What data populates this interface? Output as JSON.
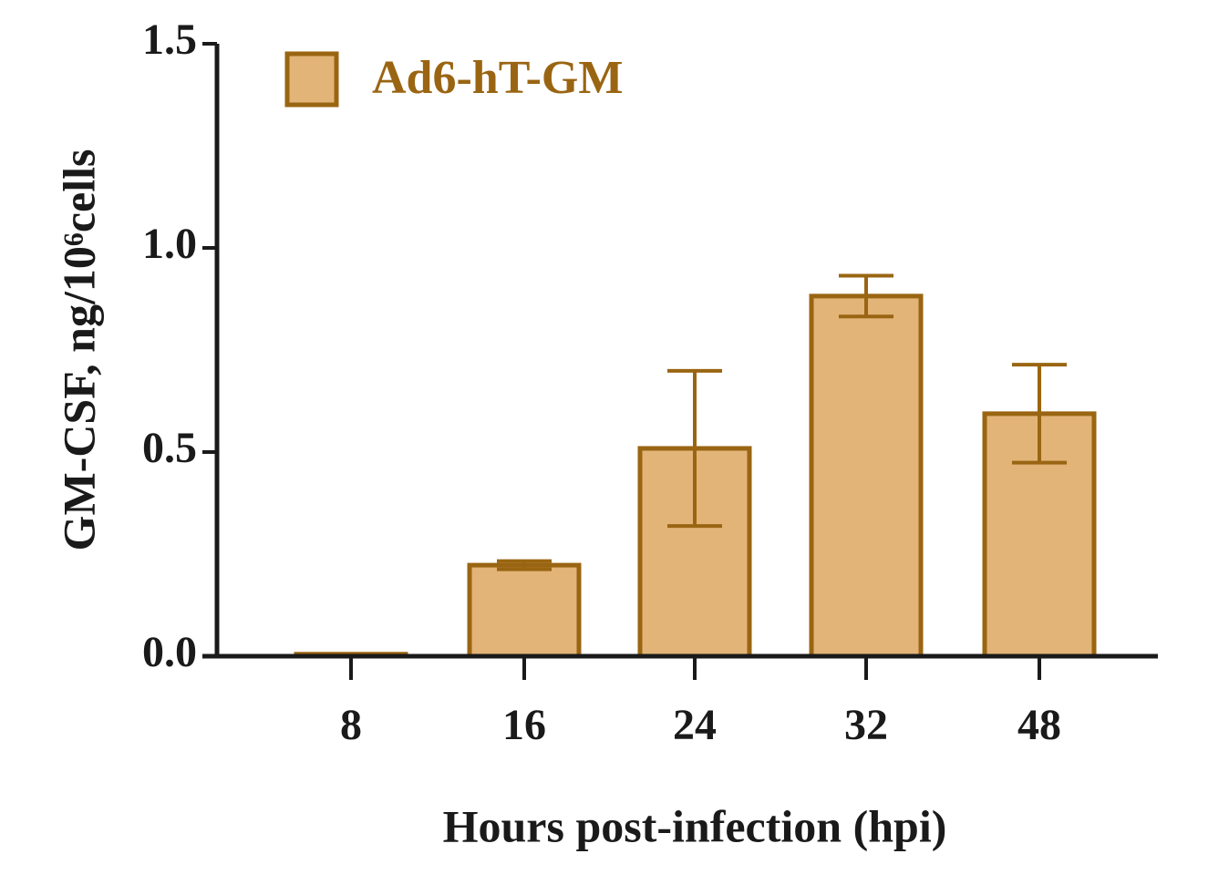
{
  "chart_data": {
    "type": "bar",
    "x_label": "Hours post-infection (hpi)",
    "y_label": "GM-CSF, ng/10⁶cells",
    "categories": [
      "8",
      "16",
      "24",
      "32",
      "48"
    ],
    "series": [
      {
        "name": "Ad6-hT-GM",
        "color": "#e2b477",
        "edge_color": "#9a6512",
        "values": [
          0.005,
          0.223,
          0.509,
          0.882,
          0.594
        ],
        "errors": [
          0,
          0.01,
          0.19,
          0.05,
          0.12
        ]
      }
    ],
    "ylim": [
      0,
      1.5
    ],
    "yticks": [
      {
        "value": 0,
        "label": "0.0"
      },
      0.5,
      {
        "value": 1,
        "label": "1.0"
      },
      1.5
    ],
    "legend": "top-left"
  }
}
